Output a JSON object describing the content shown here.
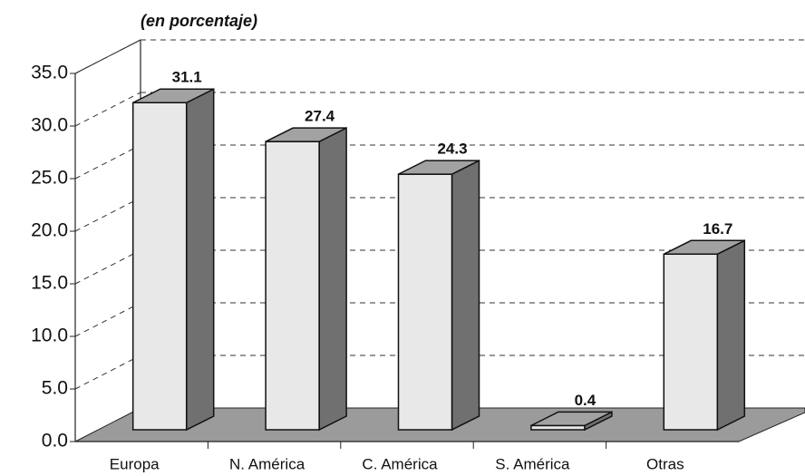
{
  "chart_data": {
    "type": "bar3d",
    "subtitle": "(en porcentaje)",
    "categories": [
      "Europa",
      "N. América",
      "C. América",
      "S. América",
      "Otras"
    ],
    "values": [
      31.1,
      27.4,
      24.3,
      0.4,
      16.7
    ],
    "ylim": [
      0,
      35
    ],
    "yticks": [
      {
        "value": 0,
        "label": "0.0"
      },
      {
        "value": 5,
        "label": "5.0"
      },
      {
        "value": 10,
        "label": "10.0"
      },
      {
        "value": 15,
        "label": "15.0"
      },
      {
        "value": 20,
        "label": "20.0"
      },
      {
        "value": 25,
        "label": "25.0"
      },
      {
        "value": 30,
        "label": "30.0"
      },
      {
        "value": 35,
        "label": "35.0"
      }
    ],
    "grid": true,
    "color": "#e8e8e8"
  }
}
